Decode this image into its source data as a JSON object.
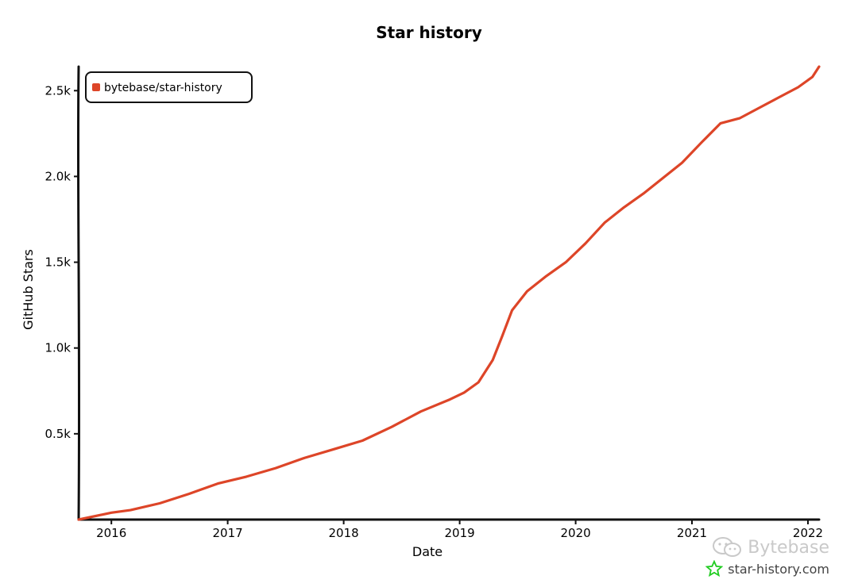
{
  "chart_data": {
    "type": "line",
    "title": "Star history",
    "xlabel": "Date",
    "ylabel": "GitHub Stars",
    "x_ticks": [
      "2016",
      "2017",
      "2018",
      "2019",
      "2020",
      "2021",
      "2022"
    ],
    "y_ticks": [
      "0.5k",
      "1.0k",
      "1.5k",
      "2.0k",
      "2.5k"
    ],
    "y_tick_values": [
      500,
      1000,
      1500,
      2000,
      2500
    ],
    "xlim": [
      "2015-09-20",
      "2022-02-05"
    ],
    "ylim": [
      0,
      2640
    ],
    "legend_position": "top-left",
    "grid": false,
    "series": [
      {
        "name": "bytebase/star-history",
        "color": "#dd4528",
        "x": [
          "2015-09-20",
          "2016-01-01",
          "2016-03-01",
          "2016-06-01",
          "2016-09-01",
          "2016-12-01",
          "2017-03-01",
          "2017-06-01",
          "2017-09-01",
          "2017-12-01",
          "2018-03-01",
          "2018-06-01",
          "2018-09-01",
          "2018-12-01",
          "2019-01-15",
          "2019-03-01",
          "2019-04-15",
          "2019-05-15",
          "2019-06-15",
          "2019-08-01",
          "2019-10-01",
          "2019-12-01",
          "2020-02-01",
          "2020-04-01",
          "2020-06-01",
          "2020-08-01",
          "2020-10-01",
          "2020-12-01",
          "2021-02-01",
          "2021-04-01",
          "2021-06-01",
          "2021-08-01",
          "2021-10-01",
          "2021-12-01",
          "2022-01-15",
          "2022-02-05"
        ],
        "y": [
          0,
          40,
          55,
          95,
          150,
          210,
          250,
          300,
          360,
          410,
          460,
          540,
          630,
          700,
          740,
          800,
          930,
          1070,
          1220,
          1330,
          1420,
          1500,
          1610,
          1730,
          1820,
          1900,
          1990,
          2080,
          2200,
          2310,
          2340,
          2400,
          2460,
          2520,
          2580,
          2640
        ]
      }
    ]
  },
  "watermark": {
    "brand": "Bytebase",
    "site": "star-history.com",
    "brand_icon": "wechat-icon",
    "site_icon": "star-outline-icon",
    "site_icon_color": "#22cc22"
  }
}
